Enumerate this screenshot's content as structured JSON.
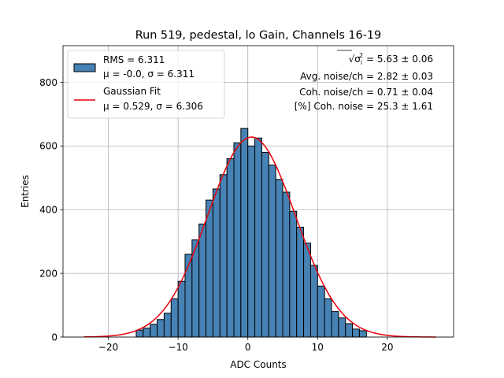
{
  "chart_data": {
    "type": "bar",
    "title": "Run 519, pedestal, lo Gain, Channels 16-19",
    "xlabel": "ADC Counts",
    "ylabel": "Entries",
    "xlim": [
      -26.5,
      29.5
    ],
    "ylim": [
      0,
      915
    ],
    "xticks": [
      -20,
      -10,
      0,
      10,
      20
    ],
    "yticks": [
      0,
      200,
      400,
      600,
      800
    ],
    "grid": true,
    "bin_width": 1,
    "bin_start": -16,
    "counts": [
      22,
      28,
      40,
      55,
      75,
      120,
      175,
      260,
      305,
      355,
      430,
      465,
      510,
      560,
      610,
      655,
      600,
      625,
      580,
      540,
      495,
      455,
      395,
      345,
      295,
      225,
      160,
      120,
      80,
      60,
      42,
      25,
      20
    ],
    "fit": {
      "mu": 0.529,
      "sigma": 6.306,
      "amplitude": 628,
      "x_range": [
        -23.5,
        27
      ]
    },
    "fit_color": "#e8000b",
    "bar_color": "#4682b4",
    "legend_placement": "upper-left",
    "legend": [
      {
        "kind": "patch",
        "line1": "RMS = 6.311",
        "line2": "μ = -0.0, σ = 6.311"
      },
      {
        "kind": "line",
        "line1": "Gaussian Fit",
        "line2": "μ = 0.529, σ = 6.306"
      }
    ],
    "annotations": {
      "total_noise_value": " = 5.63 ± 0.06",
      "avg_noise": "Avg. noise/ch = 2.82 ± 0.03",
      "coh_noise": "Coh. noise/ch = 0.71 ± 0.04",
      "coh_percent": "[%] Coh. noise = 25.3 ± 1.61"
    }
  }
}
